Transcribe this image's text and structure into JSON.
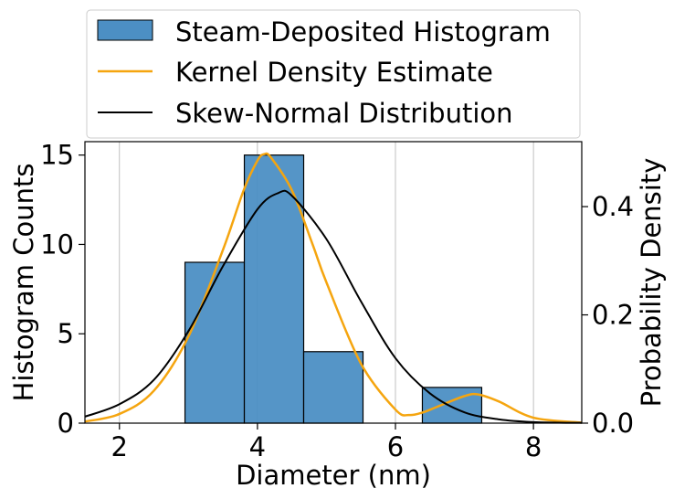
{
  "chart_data": {
    "type": "bar",
    "xlabel": "Diameter (nm)",
    "ylabel": "Histogram Counts",
    "ylabel_right": "Probability Density",
    "xlim": [
      1.5,
      8.7
    ],
    "ylim": [
      0,
      15.75
    ],
    "ylim_right": [
      0,
      0.52
    ],
    "x_ticks": [
      2,
      4,
      6,
      8
    ],
    "y_ticks": [
      0,
      5,
      10,
      15
    ],
    "y_ticks_right": [
      0.0,
      0.2,
      0.4
    ],
    "x_tick_labels": [
      "2",
      "4",
      "6",
      "8"
    ],
    "y_tick_labels": [
      "0",
      "5",
      "10",
      "15"
    ],
    "y_tick_labels_right": [
      "0.0",
      "0.2",
      "0.4"
    ],
    "grid": "x",
    "legend_position": "above",
    "histogram": {
      "name": "Steam-Deposited Histogram",
      "color": "#4c8fc4",
      "bins": [
        {
          "x0": 2.95,
          "x1": 3.81,
          "count": 9
        },
        {
          "x0": 3.81,
          "x1": 4.67,
          "count": 15
        },
        {
          "x0": 4.67,
          "x1": 5.53,
          "count": 4
        },
        {
          "x0": 5.53,
          "x1": 6.39,
          "count": 0
        },
        {
          "x0": 6.39,
          "x1": 7.25,
          "count": 2
        }
      ]
    },
    "kde": {
      "name": "Kernel Density Estimate",
      "color": "#f5a50f",
      "x": [
        1.5,
        2.0,
        2.5,
        3.0,
        3.5,
        3.8,
        4.0,
        4.1,
        4.2,
        4.5,
        4.8,
        5.0,
        5.5,
        6.0,
        6.2,
        6.4,
        6.6,
        7.0,
        7.2,
        7.5,
        8.0,
        8.7
      ],
      "y": [
        0.003,
        0.017,
        0.06,
        0.16,
        0.32,
        0.43,
        0.485,
        0.497,
        0.49,
        0.43,
        0.33,
        0.26,
        0.11,
        0.025,
        0.015,
        0.02,
        0.03,
        0.05,
        0.053,
        0.04,
        0.01,
        0.001
      ]
    },
    "skew_normal": {
      "name": "Skew-Normal Distribution",
      "color": "#000000",
      "x": [
        1.5,
        2.0,
        2.5,
        3.0,
        3.5,
        4.0,
        4.3,
        4.5,
        5.0,
        5.5,
        6.0,
        6.5,
        7.0,
        7.5,
        8.0,
        8.7
      ],
      "y": [
        0.012,
        0.035,
        0.08,
        0.17,
        0.29,
        0.395,
        0.425,
        0.42,
        0.34,
        0.225,
        0.12,
        0.055,
        0.02,
        0.007,
        0.002,
        0.0005
      ]
    }
  }
}
